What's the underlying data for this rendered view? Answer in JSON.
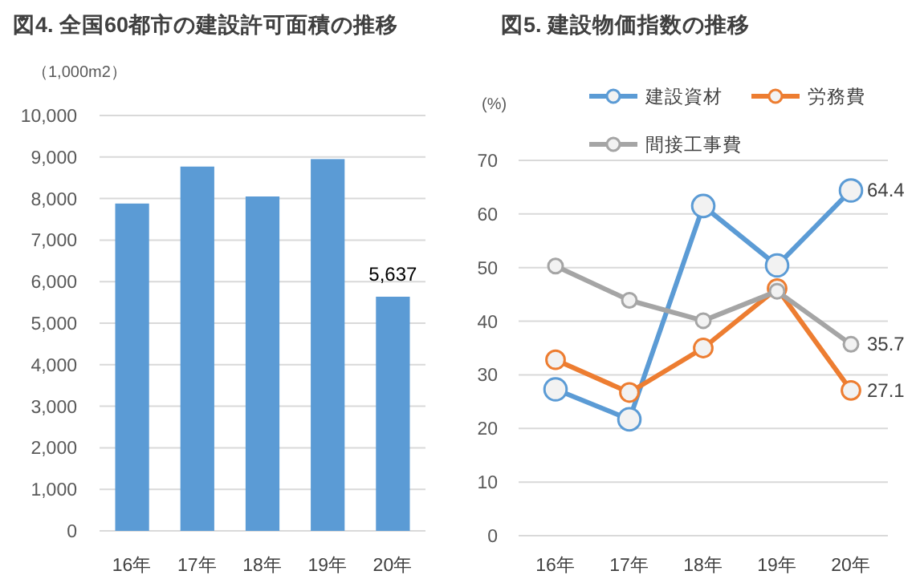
{
  "chart_data": [
    {
      "type": "bar",
      "title": "図4. 全国60都市の建設許可面積の推移",
      "ylabel": "（1,000m2）",
      "categories": [
        "16年",
        "17年",
        "18年",
        "19年",
        "20年"
      ],
      "values": [
        7880,
        8770,
        8050,
        8950,
        5637
      ],
      "value_labels": [
        null,
        null,
        null,
        null,
        "5,637"
      ],
      "color": "#5b9bd5",
      "ylim": [
        0,
        10000
      ],
      "yticks": [
        0,
        {
          "value": 1000,
          "label": "1,000"
        },
        {
          "value": 2000,
          "label": "2,000"
        },
        {
          "value": 3000,
          "label": "3,000"
        },
        {
          "value": 4000,
          "label": "4,000"
        },
        {
          "value": 5000,
          "label": "5,000"
        },
        {
          "value": 6000,
          "label": "6,000"
        },
        {
          "value": 7000,
          "label": "7,000"
        },
        {
          "value": 8000,
          "label": "8,000"
        },
        {
          "value": 9000,
          "label": "9,000"
        },
        {
          "value": 10000,
          "label": "10,000"
        }
      ],
      "grid": "y"
    },
    {
      "type": "line",
      "title": "図5. 建設物価指数の推移",
      "ylabel": "(%)",
      "categories": [
        "16年",
        "17年",
        "18年",
        "19年",
        "20年"
      ],
      "series": [
        {
          "name": "建設資材",
          "color": "#5b9bd5",
          "values": [
            27.3,
            21.7,
            61.5,
            50.4,
            64.4
          ],
          "value_labels": [
            null,
            null,
            null,
            null,
            "64.4"
          ]
        },
        {
          "name": "労務費",
          "color": "#ed7d31",
          "values": [
            32.8,
            26.7,
            35.0,
            46.1,
            27.1
          ],
          "value_labels": [
            null,
            null,
            null,
            null,
            "27.1"
          ]
        },
        {
          "name": "間接工事費",
          "color": "#a5a5a5",
          "values": [
            50.3,
            43.9,
            40.1,
            45.6,
            35.7
          ],
          "value_labels": [
            null,
            null,
            null,
            null,
            "35.7"
          ]
        }
      ],
      "ylim": [
        0,
        70
      ],
      "yticks": [
        0,
        10,
        20,
        30,
        40,
        50,
        60,
        70
      ],
      "grid": "y",
      "legend": "top",
      "marker": "circle",
      "line_style": "solid"
    }
  ]
}
